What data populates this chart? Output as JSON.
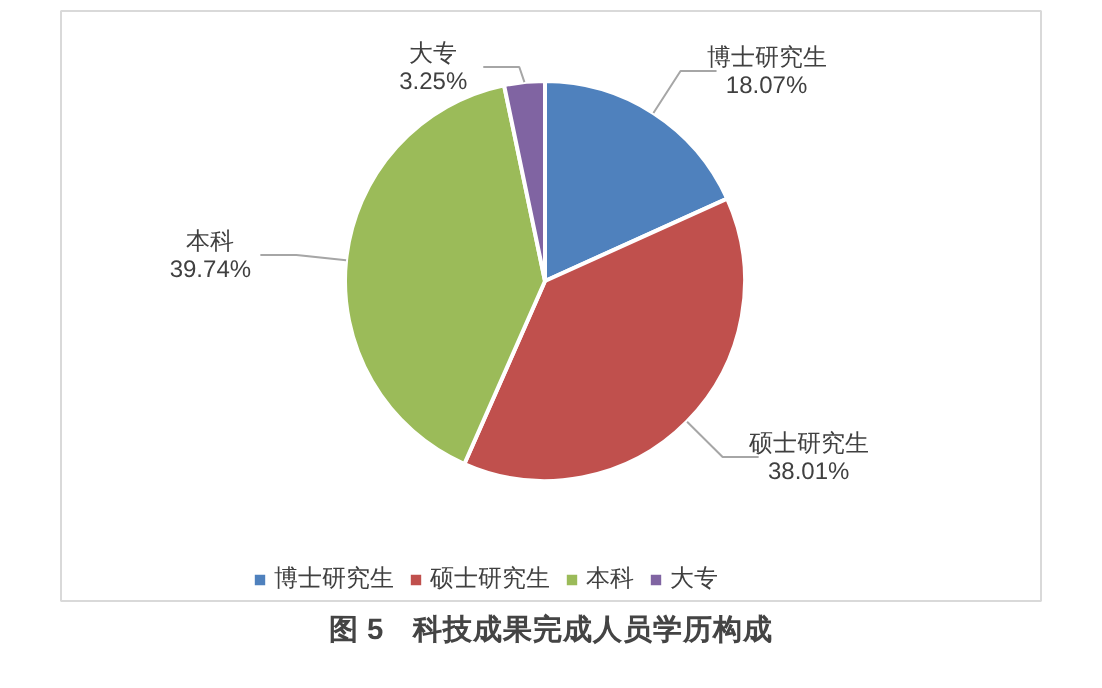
{
  "chart_data": {
    "type": "pie",
    "title": "图 5　科技成果完成人员学历构成",
    "categories": [
      "博士研究生",
      "硕士研究生",
      "本科",
      "大专"
    ],
    "values": [
      18.07,
      38.01,
      39.74,
      3.25
    ],
    "colors": [
      "#4f81bd",
      "#c0504d",
      "#9bbb59",
      "#8064a2"
    ],
    "value_labels": [
      "18.07%",
      "38.01%",
      "39.74%",
      "3.25%"
    ],
    "legend": "bottom"
  }
}
